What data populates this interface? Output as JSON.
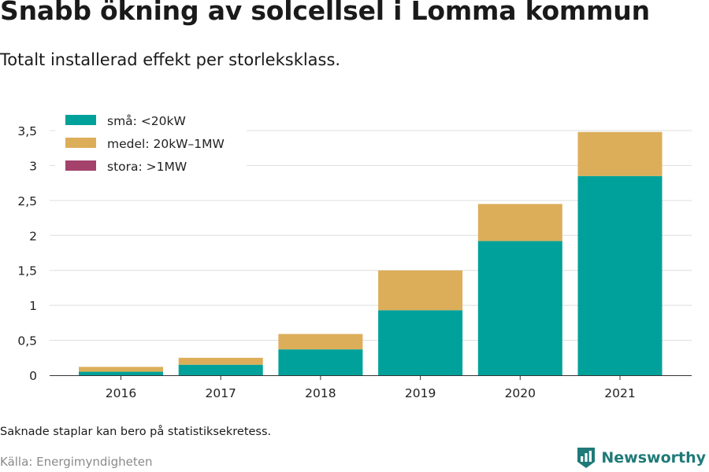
{
  "header": {
    "title": "Snabb ökning av solcellsel i Lomma kommun",
    "subtitle": "Totalt installerad effekt per storleksklass."
  },
  "footer": {
    "note": "Saknade staplar kan bero på statistiksekretess.",
    "source": "Källa: Energimyndigheten",
    "brand": "Newsworthy",
    "brand_logo_icon": "bar-chart-shield-icon"
  },
  "colors": {
    "small": "#00a19a",
    "medium": "#dcae5a",
    "large": "#a4426c",
    "grid": "#dddddd",
    "axis": "#333333",
    "brand": "#1f7a78"
  },
  "chart_data": {
    "type": "bar",
    "stacked": true,
    "categories": [
      "2016",
      "2017",
      "2018",
      "2019",
      "2020",
      "2021"
    ],
    "series": [
      {
        "name": "små: <20kW",
        "color": "#00a19a",
        "values": [
          0.05,
          0.15,
          0.37,
          0.93,
          1.92,
          2.85
        ]
      },
      {
        "name": "medel: 20kW–1MW",
        "color": "#dcae5a",
        "values": [
          0.07,
          0.1,
          0.22,
          0.57,
          0.53,
          0.63
        ]
      },
      {
        "name": "stora: >1MW",
        "color": "#a4426c",
        "values": [
          0,
          0,
          0,
          0,
          0,
          0
        ]
      }
    ],
    "yticks": [
      "0",
      "0,5",
      "1",
      "1,5",
      "2",
      "2,5",
      "3",
      "3,5"
    ],
    "ylim": [
      0,
      3.5
    ],
    "grid": true,
    "legend_position": "top-left"
  }
}
